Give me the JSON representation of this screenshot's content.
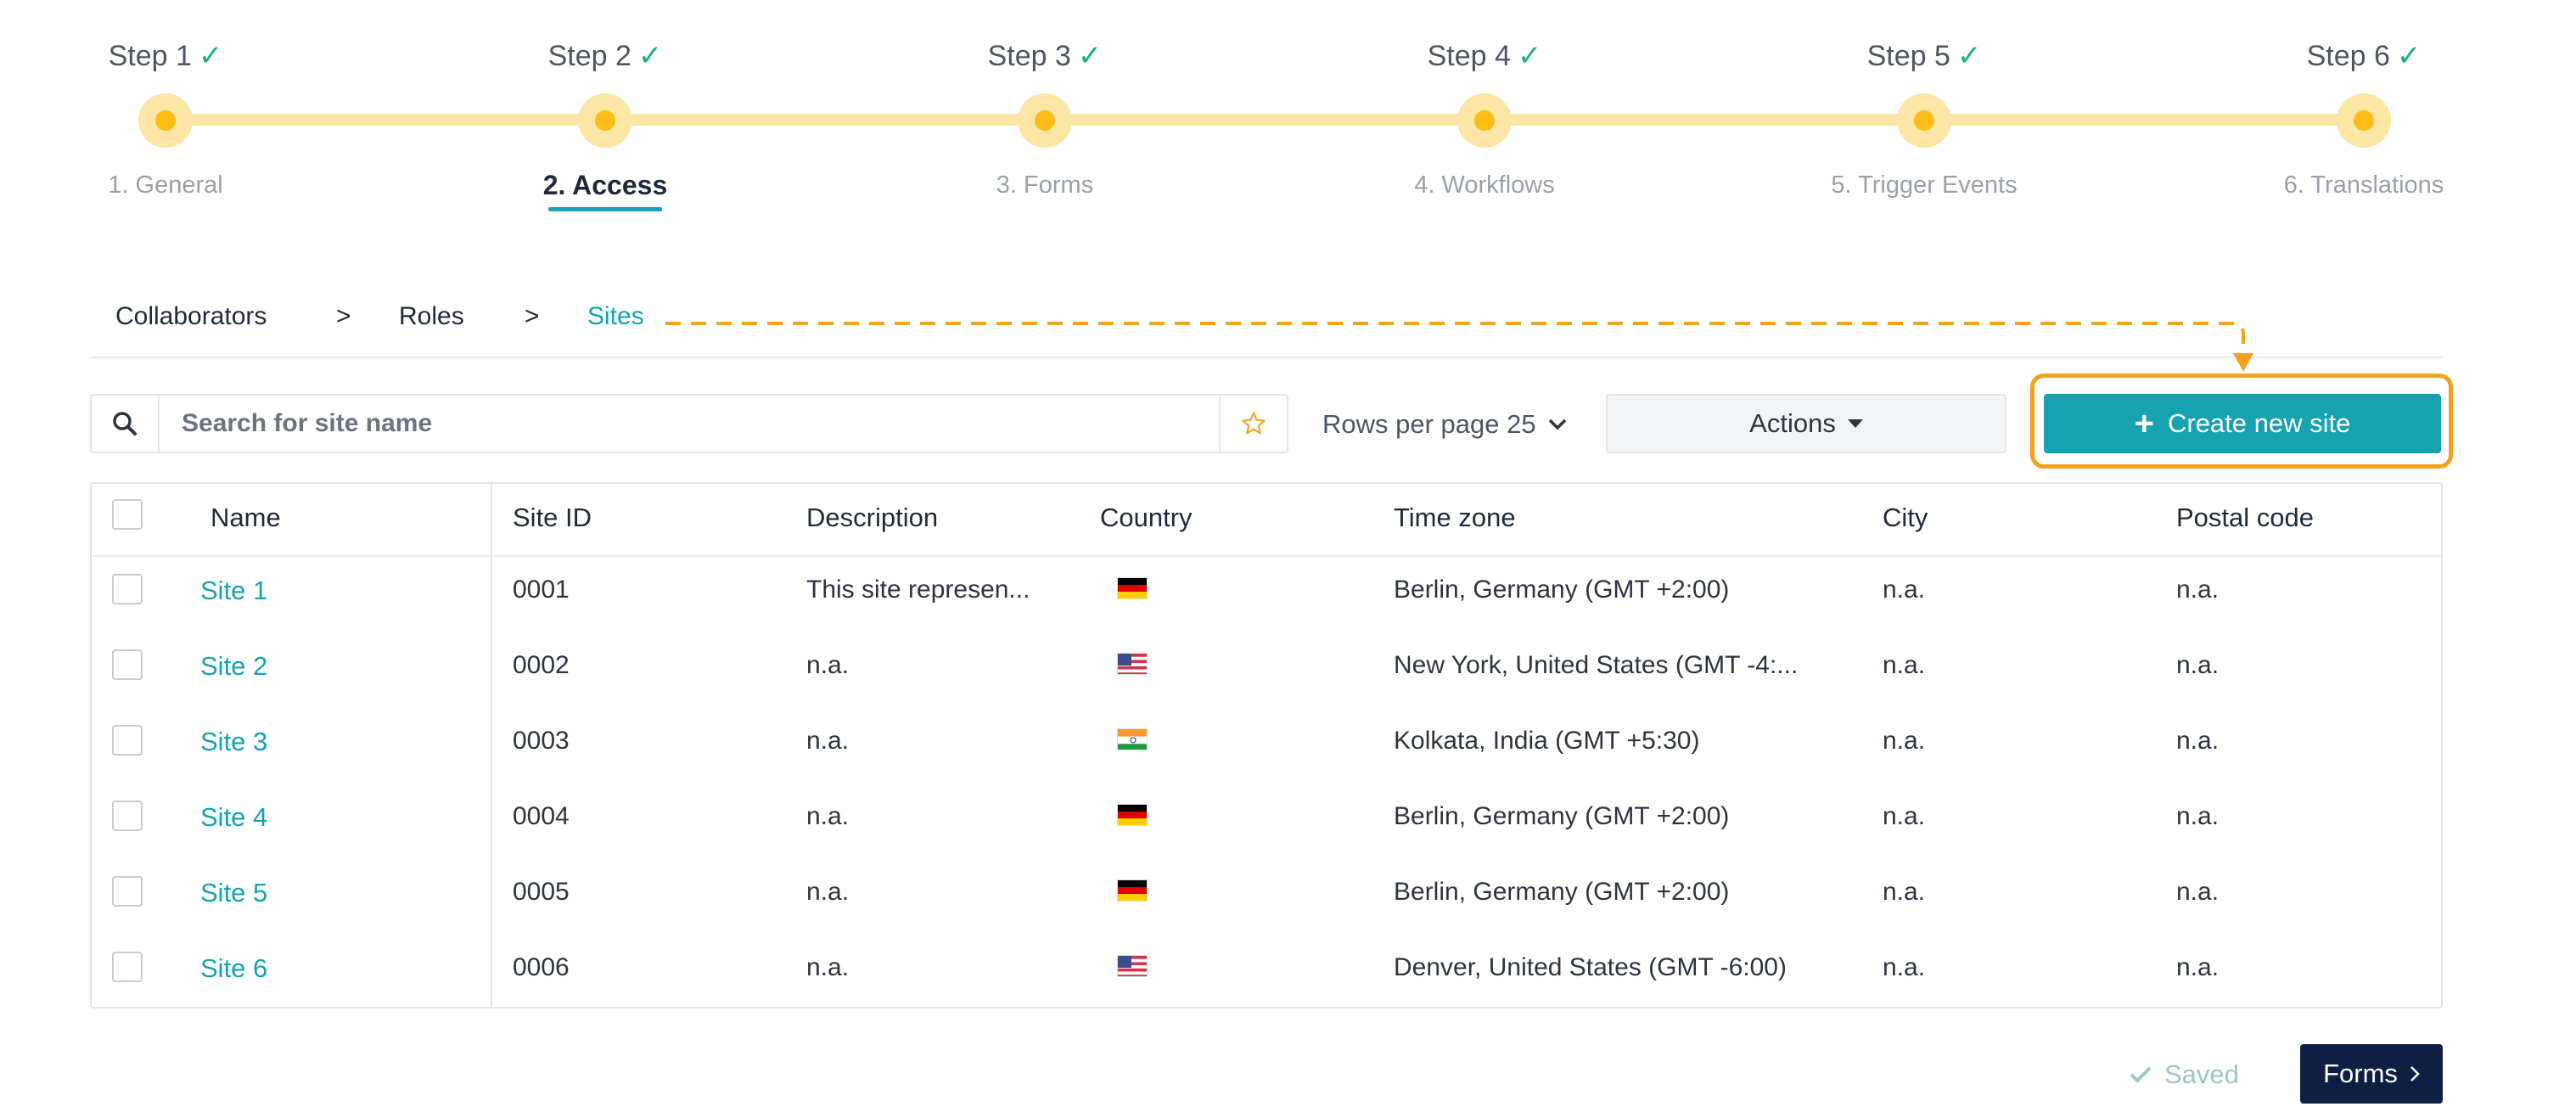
{
  "stepper": {
    "steps": [
      {
        "title": "Step 1",
        "label": "1. General"
      },
      {
        "title": "Step 2",
        "label": "2. Access"
      },
      {
        "title": "Step 3",
        "label": "3. Forms"
      },
      {
        "title": "Step 4",
        "label": "4. Workflows"
      },
      {
        "title": "Step 5",
        "label": "5. Trigger Events"
      },
      {
        "title": "Step 6",
        "label": "6. Translations"
      }
    ],
    "check": "✓",
    "active_step": 2
  },
  "breadcrumb": {
    "items": [
      "Collaborators",
      "Roles",
      "Sites"
    ],
    "separator": ">"
  },
  "toolbar": {
    "search_placeholder": "Search for site name",
    "rows_per_page": "Rows per page 25",
    "actions_label": "Actions",
    "create_label": "Create new site"
  },
  "table": {
    "headers": [
      "Name",
      "Site ID",
      "Description",
      "Country",
      "Time zone",
      "City",
      "Postal code"
    ],
    "rows": [
      {
        "name": "Site 1",
        "site_id": "0001",
        "description": "This site represen...",
        "country": "DE",
        "timezone": "Berlin, Germany (GMT +2:00)",
        "city": "n.a.",
        "postal": "n.a."
      },
      {
        "name": "Site 2",
        "site_id": "0002",
        "description": "n.a.",
        "country": "US",
        "timezone": "New York, United States (GMT -4:...",
        "city": "n.a.",
        "postal": "n.a."
      },
      {
        "name": "Site 3",
        "site_id": "0003",
        "description": "n.a.",
        "country": "IN",
        "timezone": "Kolkata, India (GMT +5:30)",
        "city": "n.a.",
        "postal": "n.a."
      },
      {
        "name": "Site 4",
        "site_id": "0004",
        "description": "n.a.",
        "country": "DE",
        "timezone": "Berlin, Germany (GMT +2:00)",
        "city": "n.a.",
        "postal": "n.a."
      },
      {
        "name": "Site 5",
        "site_id": "0005",
        "description": "n.a.",
        "country": "DE",
        "timezone": "Berlin, Germany (GMT +2:00)",
        "city": "n.a.",
        "postal": "n.a."
      },
      {
        "name": "Site 6",
        "site_id": "0006",
        "description": "n.a.",
        "country": "US",
        "timezone": "Denver, United States (GMT -6:00)",
        "city": "n.a.",
        "postal": "n.a."
      }
    ]
  },
  "footer": {
    "saved_label": "Saved",
    "forms_label": "Forms"
  },
  "colors": {
    "accent": "#17a2b0",
    "step_dot": "#fbbd16",
    "step_track": "#fbe6a6",
    "check": "#1db07a",
    "highlight": "#f5a11c",
    "primary_dark": "#0f1f44"
  }
}
